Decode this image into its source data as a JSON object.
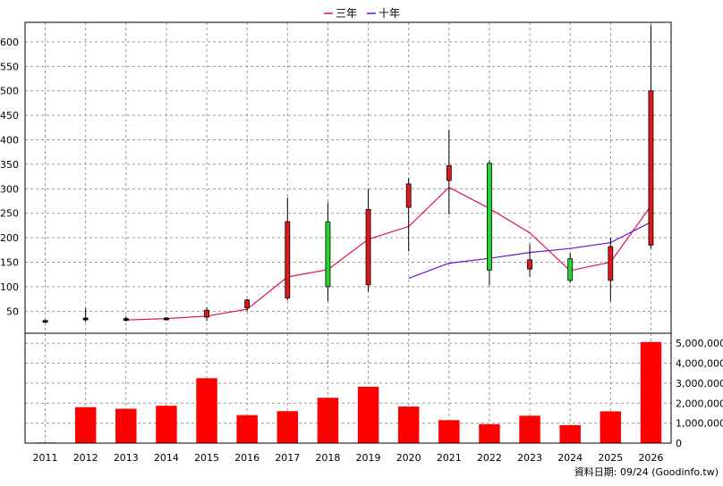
{
  "chart_data": {
    "type": "candlestick",
    "legend": [
      {
        "label": "三年",
        "color": "#e0105a"
      },
      {
        "label": "十年",
        "color": "#6a10d8"
      }
    ],
    "credit": "資料日期: 09/24  (Goodinfo.tw)",
    "x_categories": [
      "2011",
      "2012",
      "2013",
      "2014",
      "2015",
      "2016",
      "2017",
      "2018",
      "2019",
      "2020",
      "2021",
      "2022",
      "2023",
      "2024",
      "2025",
      "2026"
    ],
    "price_axis": {
      "ylim": [
        5,
        640
      ],
      "ticks": [
        50,
        100,
        150,
        200,
        250,
        300,
        350,
        400,
        450,
        500,
        550,
        600
      ]
    },
    "volume_axis": {
      "ylim": [
        0,
        5500000
      ],
      "ticks": [
        0,
        1000000,
        2000000,
        3000000,
        4000000,
        5000000
      ],
      "tick_labels": [
        "0",
        "1,000,000",
        "2,000,000",
        "3,000,000",
        "4,000,000",
        "5,000,000"
      ]
    },
    "candles": [
      {
        "year": "2011",
        "open": 30,
        "close": 31,
        "high": 33,
        "low": 28,
        "color": "black"
      },
      {
        "year": "2012",
        "open": 33,
        "close": 36,
        "high": 57,
        "low": 28,
        "color": "black"
      },
      {
        "year": "2013",
        "open": 32,
        "close": 35,
        "high": 40,
        "low": 29,
        "color": "black"
      },
      {
        "year": "2014",
        "open": 33,
        "close": 36,
        "high": 38,
        "low": 31,
        "color": "black"
      },
      {
        "year": "2015",
        "open": 38,
        "close": 52,
        "high": 58,
        "low": 30,
        "color": "red"
      },
      {
        "year": "2016",
        "open": 57,
        "close": 73,
        "high": 75,
        "low": 50,
        "color": "red"
      },
      {
        "year": "2017",
        "open": 77,
        "close": 233,
        "high": 282,
        "low": 72,
        "color": "red"
      },
      {
        "year": "2018",
        "open": 232,
        "close": 100,
        "high": 272,
        "low": 70,
        "color": "green"
      },
      {
        "year": "2019",
        "open": 104,
        "close": 258,
        "high": 300,
        "low": 90,
        "color": "red"
      },
      {
        "year": "2020",
        "open": 262,
        "close": 310,
        "high": 322,
        "low": 172,
        "color": "red"
      },
      {
        "year": "2021",
        "open": 317,
        "close": 347,
        "high": 420,
        "low": 248,
        "color": "red"
      },
      {
        "year": "2022",
        "open": 352,
        "close": 134,
        "high": 358,
        "low": 103,
        "color": "green"
      },
      {
        "year": "2023",
        "open": 136,
        "close": 155,
        "high": 187,
        "low": 120,
        "color": "red"
      },
      {
        "year": "2024",
        "open": 157,
        "close": 113,
        "high": 170,
        "low": 108,
        "color": "green"
      },
      {
        "year": "2025",
        "open": 113,
        "close": 182,
        "high": 200,
        "low": 70,
        "color": "red"
      },
      {
        "year": "2026",
        "open": 185,
        "close": 500,
        "high": 634,
        "low": 178,
        "color": "red"
      }
    ],
    "ma_3y": [
      {
        "year": "2013",
        "value": 32
      },
      {
        "year": "2014",
        "value": 35
      },
      {
        "year": "2015",
        "value": 40
      },
      {
        "year": "2016",
        "value": 54
      },
      {
        "year": "2017",
        "value": 120
      },
      {
        "year": "2018",
        "value": 135
      },
      {
        "year": "2019",
        "value": 197
      },
      {
        "year": "2020",
        "value": 223
      },
      {
        "year": "2021",
        "value": 303
      },
      {
        "year": "2022",
        "value": 260
      },
      {
        "year": "2023",
        "value": 210
      },
      {
        "year": "2024",
        "value": 133
      },
      {
        "year": "2025",
        "value": 150
      },
      {
        "year": "2026",
        "value": 265
      }
    ],
    "ma_10y": [
      {
        "year": "2020",
        "value": 117
      },
      {
        "year": "2021",
        "value": 148
      },
      {
        "year": "2022",
        "value": 158
      },
      {
        "year": "2023",
        "value": 170
      },
      {
        "year": "2024",
        "value": 178
      },
      {
        "year": "2025",
        "value": 190
      },
      {
        "year": "2026",
        "value": 232
      }
    ],
    "volume": [
      30000,
      1800000,
      1720000,
      1870000,
      3250000,
      1400000,
      1600000,
      2270000,
      2820000,
      1830000,
      1150000,
      950000,
      1370000,
      900000,
      1590000,
      5060000
    ]
  }
}
